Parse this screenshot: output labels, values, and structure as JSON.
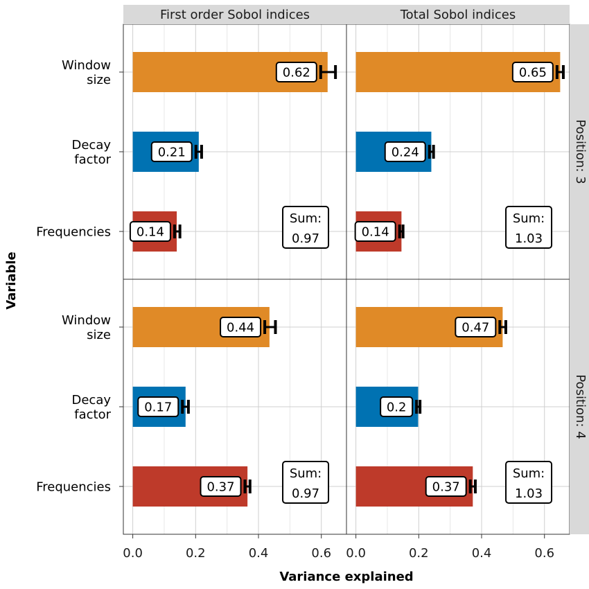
{
  "chart_data": {
    "type": "bar",
    "orientation": "horizontal",
    "xlabel": "Variance explained",
    "ylabel": "Variable",
    "xlim": [
      -0.03,
      0.68
    ],
    "xticks": [
      0.0,
      0.2,
      0.4,
      0.6
    ],
    "xtick_labels": [
      "0.0",
      "0.2",
      "0.4",
      "0.6"
    ],
    "grid": true,
    "categories": [
      "Window size",
      "Decay factor",
      "Frequencies"
    ],
    "category_label_lines": [
      [
        "Window",
        "size"
      ],
      [
        "Decay",
        "factor"
      ],
      [
        "Frequencies"
      ]
    ],
    "colors": {
      "Window size": "#E08A27",
      "Decay factor": "#0072B2",
      "Frequencies": "#BE3A2A"
    },
    "column_facets": [
      "First order Sobol indices",
      "Total Sobol indices"
    ],
    "row_facets": [
      "Position: 3",
      "Position: 4"
    ],
    "panels": [
      {
        "col": 0,
        "row": 0,
        "values": [
          0.62,
          0.21,
          0.14
        ],
        "error_bars": [
          [
            0.598,
            0.645
          ],
          [
            0.201,
            0.219
          ],
          [
            0.133,
            0.15
          ]
        ],
        "labels": [
          "0.62",
          "0.21",
          "0.14"
        ],
        "sum_label": "Sum:",
        "sum_value": "0.97"
      },
      {
        "col": 1,
        "row": 0,
        "values": [
          0.65,
          0.24,
          0.145
        ],
        "error_bars": [
          [
            0.64,
            0.66
          ],
          [
            0.234,
            0.247
          ],
          [
            0.139,
            0.15
          ]
        ],
        "labels": [
          "0.65",
          "0.24",
          "0.14"
        ],
        "sum_label": "Sum:",
        "sum_value": "1.03"
      },
      {
        "col": 0,
        "row": 1,
        "values": [
          0.435,
          0.168,
          0.365
        ],
        "error_bars": [
          [
            0.42,
            0.454
          ],
          [
            0.158,
            0.177
          ],
          [
            0.357,
            0.373
          ]
        ],
        "labels": [
          "0.44",
          "0.17",
          "0.37"
        ],
        "sum_label": "Sum:",
        "sum_value": "0.97"
      },
      {
        "col": 1,
        "row": 1,
        "values": [
          0.467,
          0.198,
          0.372
        ],
        "error_bars": [
          [
            0.458,
            0.477
          ],
          [
            0.193,
            0.204
          ],
          [
            0.364,
            0.38
          ]
        ],
        "labels": [
          "0.47",
          "0.2",
          "0.37"
        ],
        "sum_label": "Sum:",
        "sum_value": "1.03"
      }
    ]
  }
}
